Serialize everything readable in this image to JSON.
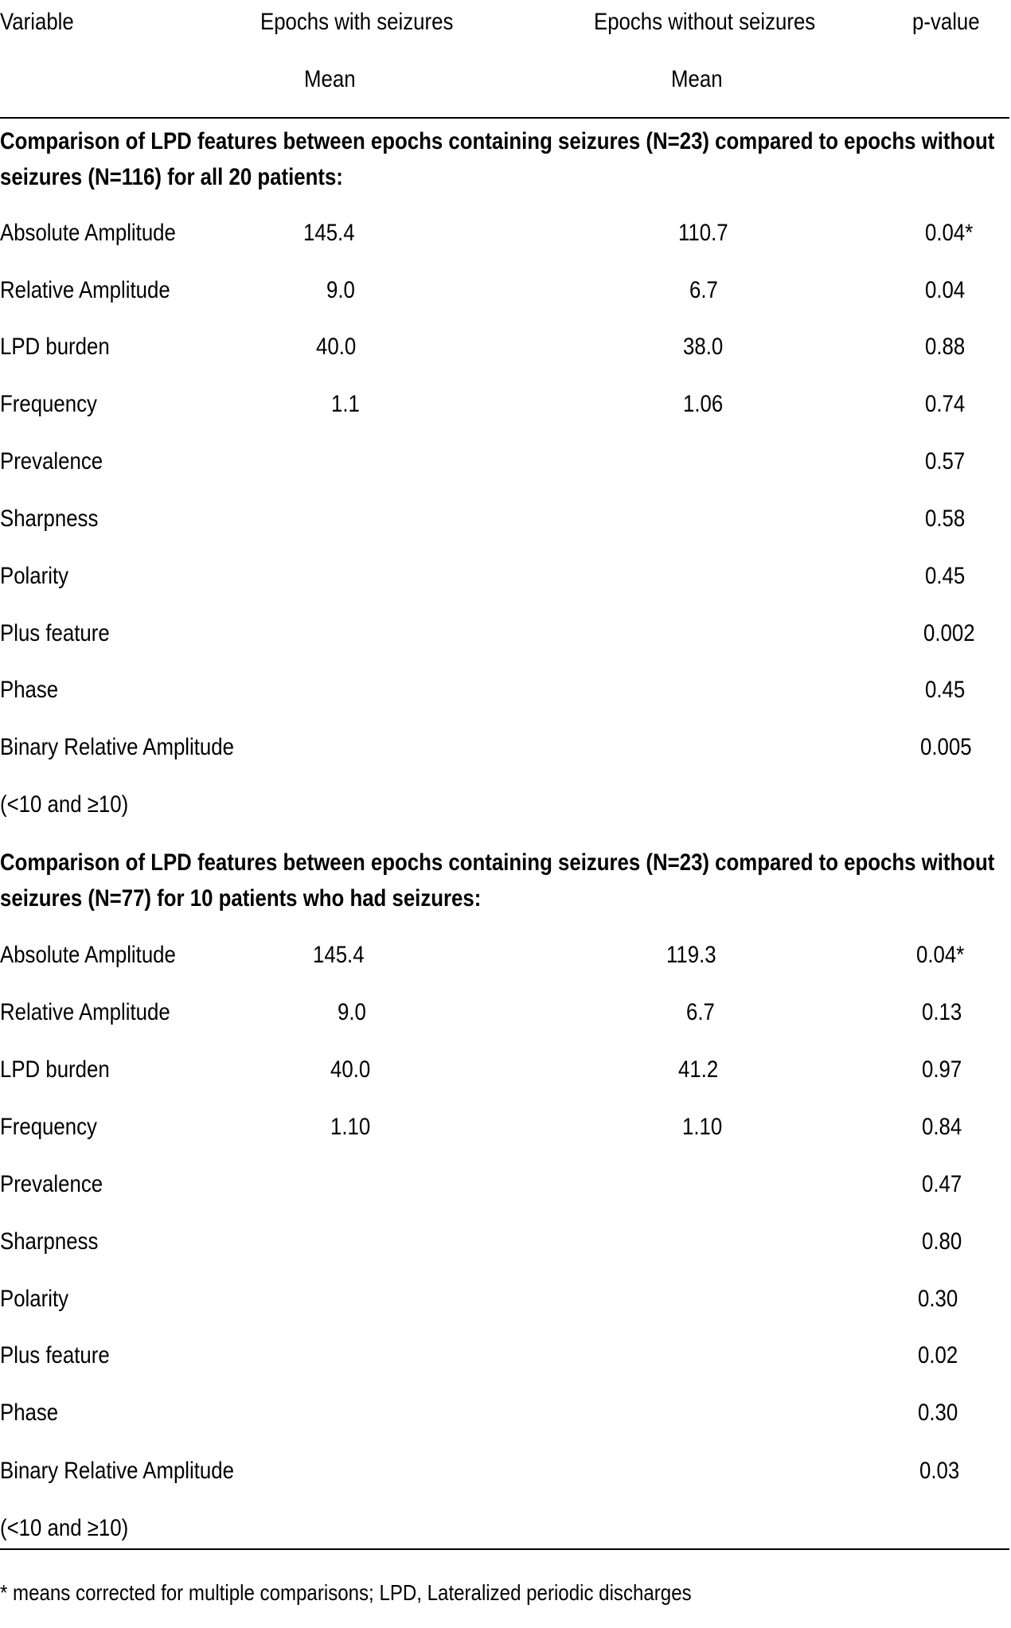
{
  "header": {
    "variable": "Variable",
    "with_seizures": "Epochs with seizures",
    "without_seizures": "Epochs without seizures",
    "pvalue": "p-value",
    "mean_with": "Mean",
    "mean_without": "Mean"
  },
  "sections": [
    {
      "title_line1": "Comparison of LPD features between epochs containing seizures (N=23) compared to epochs without",
      "title_line2": "seizures (N=116) for all 20 patients:",
      "rows": [
        {
          "variable": "Absolute Amplitude",
          "with": "145.4",
          "without": "110.7",
          "p": "0.04*"
        },
        {
          "variable": "Relative Amplitude",
          "with": "9.0",
          "without": "6.7",
          "p": "0.04"
        },
        {
          "variable": "LPD burden",
          "with": "40.0",
          "without": "38.0",
          "p": "0.88"
        },
        {
          "variable": "Frequency",
          "with": "1.1",
          "without": "1.06",
          "p": "0.74"
        },
        {
          "variable": "Prevalence",
          "with": "",
          "without": "",
          "p": "0.57"
        },
        {
          "variable": "Sharpness",
          "with": "",
          "without": "",
          "p": "0.58"
        },
        {
          "variable": "Polarity",
          "with": "",
          "without": "",
          "p": "0.45"
        },
        {
          "variable": "Plus feature",
          "with": "",
          "without": "",
          "p": "0.002"
        },
        {
          "variable": "Phase",
          "with": "",
          "without": "",
          "p": "0.45"
        },
        {
          "variable": "Binary Relative Amplitude",
          "with": "",
          "without": "",
          "p": "0.005"
        },
        {
          "variable": " (<10 and ≥10)",
          "with": "",
          "without": "",
          "p": ""
        }
      ]
    },
    {
      "title_line1": "Comparison of LPD features between epochs containing seizures (N=23) compared to epochs without",
      "title_line2": "seizures (N=77) for 10 patients who had seizures:",
      "rows": [
        {
          "variable": "Absolute Amplitude",
          "with": "145.4",
          "without": "119.3",
          "p": "0.04*"
        },
        {
          "variable": "Relative Amplitude",
          "with": "9.0",
          "without": "6.7",
          "p": "0.13"
        },
        {
          "variable": "LPD burden",
          "with": "40.0",
          "without": "41.2",
          "p": "0.97"
        },
        {
          "variable": "Frequency",
          "with": "1.10",
          "without": "1.10",
          "p": "0.84"
        },
        {
          "variable": "Prevalence",
          "with": "",
          "without": "",
          "p": "0.47"
        },
        {
          "variable": "Sharpness",
          "with": "",
          "without": "",
          "p": "0.80"
        },
        {
          "variable": "Polarity",
          "with": "",
          "without": "",
          "p": "0.30"
        },
        {
          "variable": "Plus feature",
          "with": "",
          "without": "",
          "p": "0.02"
        },
        {
          "variable": " Phase",
          "with": "",
          "without": "",
          "p": "0.30"
        },
        {
          "variable": "Binary Relative Amplitude",
          "with": "",
          "without": "",
          "p": "0.03"
        },
        {
          "variable": " (<10 and ≥10)",
          "with": "",
          "without": "",
          "p": ""
        }
      ]
    }
  ],
  "footnote": "* means corrected for multiple comparisons; LPD, Lateralized periodic discharges"
}
